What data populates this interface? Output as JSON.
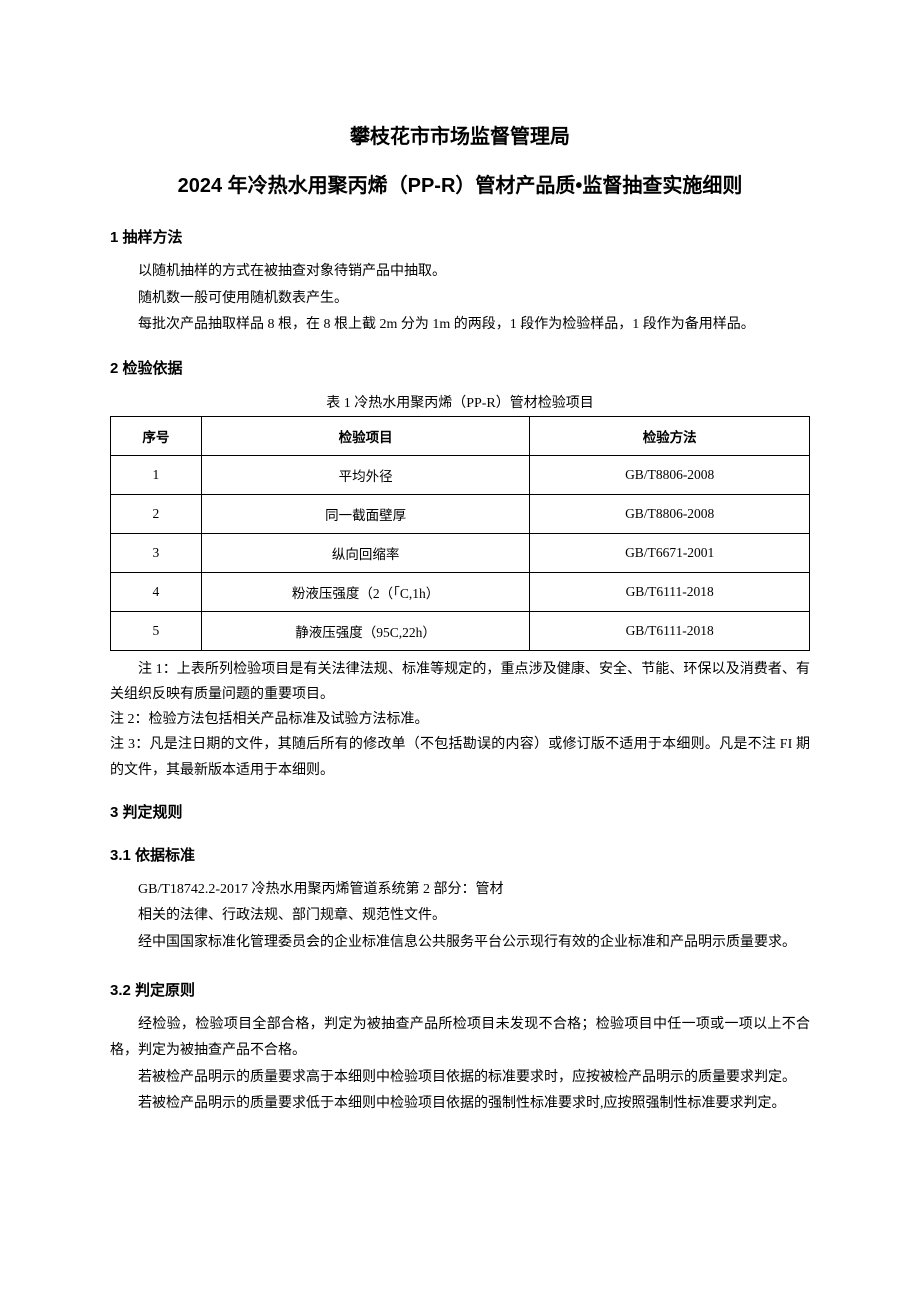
{
  "colors": {
    "background": "#ffffff",
    "text": "#000000",
    "table_border": "#000000"
  },
  "typography": {
    "body_font": "SimSun",
    "heading_font": "SimHei",
    "title_size_pt": 15,
    "body_size_pt": 10.5,
    "section_size_pt": 11
  },
  "title_line1": "攀枝花市市场监督管理局",
  "title_line2": "2024 年冷热水用聚丙烯（PP-R）管材产品质•监督抽查实施细则",
  "section1": {
    "heading": "1 抽样方法",
    "p1": "以随机抽样的方式在被抽查对象待销产品中抽取。",
    "p2": "随机数一般可使用随机数表产生。",
    "p3": "每批次产品抽取样品 8 根，在 8 根上截 2m 分为 1m 的两段，1 段作为检验样品，1 段作为备用样品。"
  },
  "section2": {
    "heading": "2 检验依据",
    "table": {
      "caption": "表 1 冷热水用聚丙烯（PP-R）管材检验项目",
      "type": "table",
      "headers": [
        "序号",
        "检验项目",
        "检验方法"
      ],
      "column_widths_pct": [
        13,
        47,
        40
      ],
      "column_align": [
        "center",
        "center",
        "center"
      ],
      "rows": [
        [
          "1",
          "平均外径",
          "GB/T8806-2008"
        ],
        [
          "2",
          "同一截面壁厚",
          "GB/T8806-2008"
        ],
        [
          "3",
          "纵向回缩率",
          "GB/T6671-2001"
        ],
        [
          "4",
          "粉液压强度（2（「C,1h）",
          "GB/T6111-2018"
        ],
        [
          "5",
          "静液压强度（95C,22h）",
          "GB/T6111-2018"
        ]
      ],
      "border_color": "#000000",
      "cell_fontsize_pt": 10
    },
    "note1": "注 1：上表所列检验项目是有关法律法规、标准等规定的，重点涉及健康、安全、节能、环保以及消费者、有关组织反映有质量问题的重要项目。",
    "note2": "注 2：检验方法包括相关产品标准及试验方法标准。",
    "note3": "注 3：凡是注日期的文件，其随后所有的修改单（不包括勘误的内容）或修订版不适用于本细则。凡是不注 FI 期的文件，其最新版本适用于本细则。"
  },
  "section3": {
    "heading": "3 判定规则",
    "sub1": {
      "heading": "3.1 依据标准",
      "p1": "GB/T18742.2-2017 冷热水用聚丙烯管道系统第 2 部分：管材",
      "p2": "相关的法律、行政法规、部门规章、规范性文件。",
      "p3": "经中国国家标准化管理委员会的企业标准信息公共服务平台公示现行有效的企业标准和产品明示质量要求。"
    },
    "sub2": {
      "heading": "3.2 判定原则",
      "p1": "经检验，检验项目全部合格，判定为被抽查产品所检项目未发现不合格；检验项目中任一项或一项以上不合格，判定为被抽查产品不合格。",
      "p2": "若被检产品明示的质量要求高于本细则中检验项目依据的标准要求时，应按被检产品明示的质量要求判定。",
      "p3": "若被检产品明示的质量要求低于本细则中检验项目依据的强制性标准要求时,应按照强制性标准要求判定。"
    }
  }
}
